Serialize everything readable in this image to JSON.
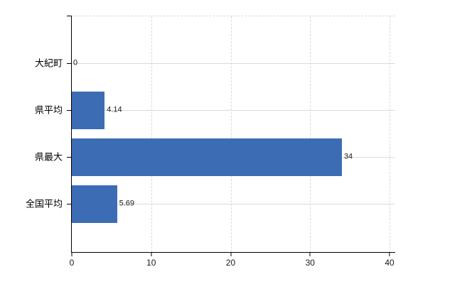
{
  "chart_data": {
    "type": "bar",
    "orientation": "horizontal",
    "title": "",
    "categories": [
      "大紀町",
      "県平均",
      "県最大",
      "全国平均"
    ],
    "values": [
      0,
      4.14,
      34,
      5.69
    ],
    "value_labels": [
      "0",
      "4.14",
      "34",
      "5.69"
    ],
    "x_tick_labels": [
      "0",
      "10",
      "20",
      "30",
      "40"
    ],
    "x_tick_values": [
      0,
      10,
      20,
      30,
      40
    ],
    "xlim": [
      0,
      40.7
    ],
    "grid": true,
    "legend_position": "none",
    "colors": {
      "bar": "#3c6cb4",
      "axis": "#000000",
      "h_gridline": "#d6ddd6",
      "v_gridline": "#d9d9d9",
      "text": "#1a1a1a"
    }
  }
}
